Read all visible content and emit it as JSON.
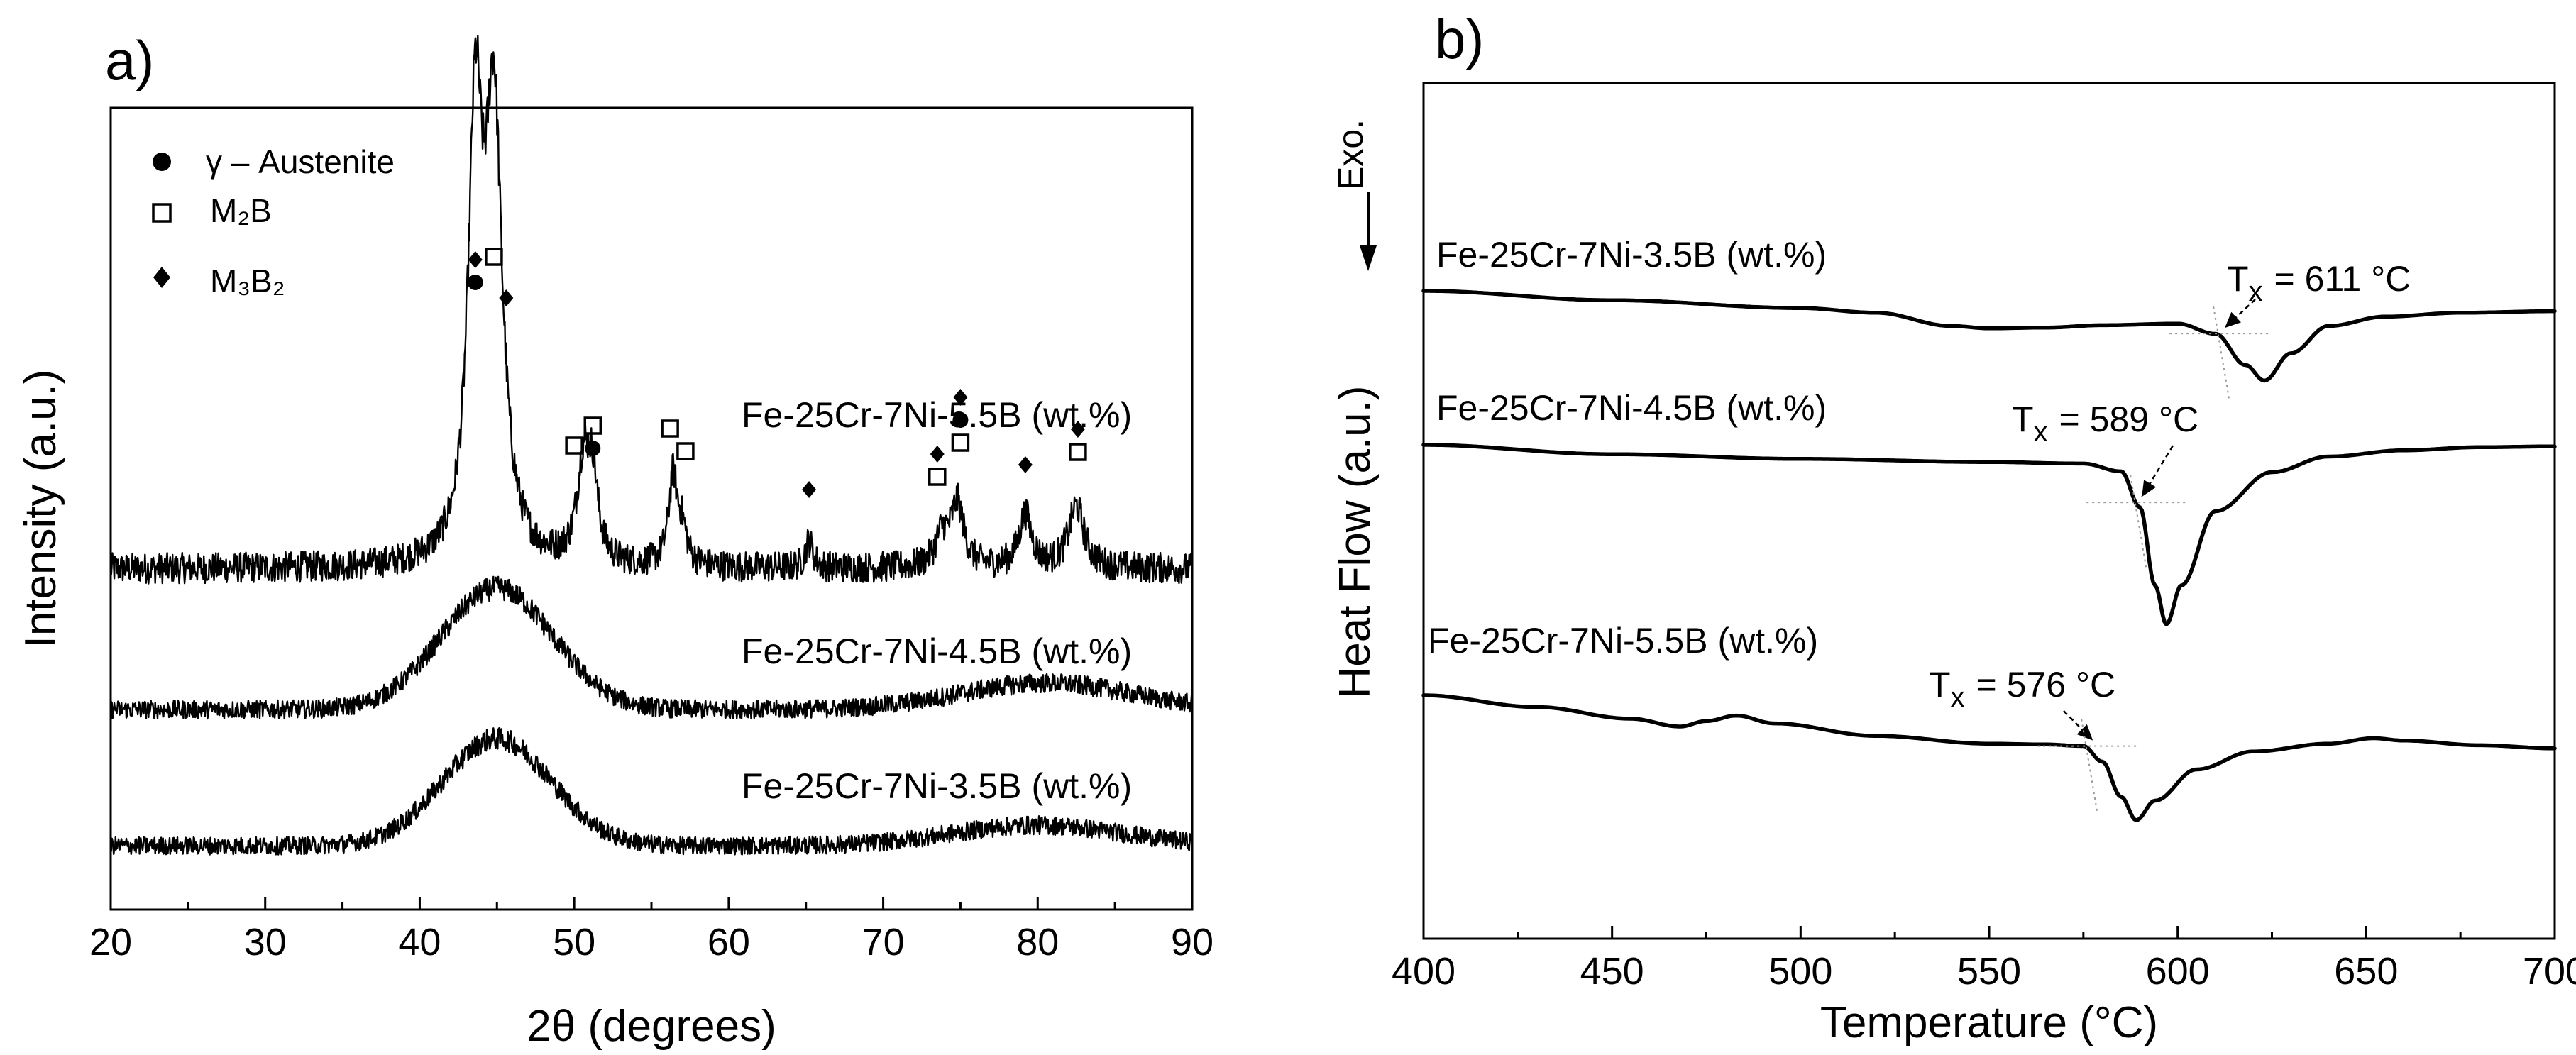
{
  "chart_data": [
    {
      "type": "line",
      "panel_label": "a)",
      "xlabel": "2θ (degrees)",
      "ylabel": "Intensity (a.u.)",
      "xlim": [
        20,
        90
      ],
      "xticks": [
        20,
        30,
        40,
        50,
        60,
        70,
        80,
        90
      ],
      "legend": [
        {
          "marker": "circle",
          "label": "γ – Austenite"
        },
        {
          "marker": "square",
          "label": "M₂B"
        },
        {
          "marker": "diamond",
          "label": "M₃B₂"
        }
      ],
      "series": [
        {
          "name": "Fe-25Cr-7Ni-5.5B (wt.%)",
          "baseline": 0.0,
          "peaks": [
            {
              "x": 43.6,
              "height": 0.95,
              "width": 0.55
            },
            {
              "x": 44.8,
              "height": 1.0,
              "width": 0.65
            },
            {
              "x": 50.6,
              "height": 0.22,
              "width": 0.5
            },
            {
              "x": 51.2,
              "height": 0.17,
              "width": 0.4
            },
            {
              "x": 56.4,
              "height": 0.2,
              "width": 0.35
            },
            {
              "x": 57.0,
              "height": 0.07,
              "width": 0.35
            },
            {
              "x": 65.2,
              "height": 0.06,
              "width": 0.3
            },
            {
              "x": 73.8,
              "height": 0.07,
              "width": 0.5
            },
            {
              "x": 74.8,
              "height": 0.14,
              "width": 0.5
            },
            {
              "x": 79.2,
              "height": 0.12,
              "width": 0.5
            },
            {
              "x": 82.5,
              "height": 0.14,
              "width": 0.6
            }
          ],
          "noise": 0.035
        },
        {
          "name": "Fe-25Cr-7Ni-4.5B (wt.%)",
          "baseline": 0.0,
          "halos": [
            {
              "x": 45.0,
              "height": 0.46,
              "width": 3.6
            },
            {
              "x": 80.5,
              "height": 0.1,
              "width": 5.5
            }
          ],
          "noise": 0.035
        },
        {
          "name": "Fe-25Cr-7Ni-3.5B (wt.%)",
          "baseline": 0.0,
          "halos": [
            {
              "x": 45.0,
              "height": 0.42,
              "width": 3.5
            },
            {
              "x": 80.0,
              "height": 0.08,
              "width": 5.5
            }
          ],
          "noise": 0.035
        }
      ],
      "phase_markers": [
        {
          "x": 43.6,
          "symbols": [
            "diamond",
            "circle"
          ]
        },
        {
          "x": 44.8,
          "symbols": [
            "square"
          ]
        },
        {
          "x": 45.6,
          "symbols": [
            "diamond"
          ]
        },
        {
          "x": 50.0,
          "symbols": [
            "square"
          ]
        },
        {
          "x": 51.2,
          "symbols": [
            "square",
            "circle"
          ]
        },
        {
          "x": 56.2,
          "symbols": [
            "square"
          ]
        },
        {
          "x": 57.2,
          "symbols": [
            "square"
          ]
        },
        {
          "x": 65.2,
          "symbols": [
            "diamond"
          ]
        },
        {
          "x": 73.5,
          "symbols": [
            "diamond",
            "square"
          ]
        },
        {
          "x": 75.0,
          "symbols": [
            "diamond",
            "circle",
            "square"
          ]
        },
        {
          "x": 79.2,
          "symbols": [
            "diamond"
          ]
        },
        {
          "x": 82.6,
          "symbols": [
            "diamond",
            "square"
          ]
        }
      ]
    },
    {
      "type": "line",
      "panel_label": "b)",
      "xlabel": "Temperature (°C)",
      "ylabel": "Heat Flow (a.u.)",
      "direction_label": "Exo.",
      "xlim": [
        400,
        700
      ],
      "xticks": [
        400,
        450,
        500,
        550,
        600,
        650,
        700
      ],
      "series": [
        {
          "name": "Fe-25Cr-7Ni-3.5B (wt.%)",
          "points": [
            [
              400,
              0.0
            ],
            [
              450,
              -0.12
            ],
            [
              500,
              -0.22
            ],
            [
              520,
              -0.28
            ],
            [
              540,
              -0.45
            ],
            [
              550,
              -0.48
            ],
            [
              565,
              -0.47
            ],
            [
              580,
              -0.44
            ],
            [
              600,
              -0.42
            ],
            [
              610,
              -0.55
            ],
            [
              618,
              -0.95
            ],
            [
              623,
              -1.15
            ],
            [
              630,
              -0.8
            ],
            [
              640,
              -0.45
            ],
            [
              655,
              -0.33
            ],
            [
              675,
              -0.28
            ],
            [
              700,
              -0.26
            ]
          ],
          "onset": {
            "label": "T",
            "subscript": "x",
            "value": "= 611 °C",
            "temperature": 611
          }
        },
        {
          "name": "Fe-25Cr-7Ni-4.5B (wt.%)",
          "points": [
            [
              400,
              0.0
            ],
            [
              450,
              -0.12
            ],
            [
              500,
              -0.18
            ],
            [
              550,
              -0.22
            ],
            [
              575,
              -0.24
            ],
            [
              585,
              -0.34
            ],
            [
              590,
              -0.8
            ],
            [
              594,
              -1.8
            ],
            [
              597,
              -2.3
            ],
            [
              601,
              -1.8
            ],
            [
              610,
              -0.85
            ],
            [
              625,
              -0.35
            ],
            [
              640,
              -0.15
            ],
            [
              660,
              -0.07
            ],
            [
              680,
              -0.03
            ],
            [
              700,
              -0.02
            ]
          ],
          "onset": {
            "label": "T",
            "subscript": "x",
            "value": "= 589 °C",
            "temperature": 589
          }
        },
        {
          "name": "Fe-25Cr-7Ni-5.5B (wt.%)",
          "points": [
            [
              400,
              0.0
            ],
            [
              430,
              -0.15
            ],
            [
              455,
              -0.3
            ],
            [
              468,
              -0.4
            ],
            [
              475,
              -0.33
            ],
            [
              483,
              -0.26
            ],
            [
              493,
              -0.36
            ],
            [
              520,
              -0.52
            ],
            [
              550,
              -0.62
            ],
            [
              565,
              -0.63
            ],
            [
              575,
              -0.65
            ],
            [
              580,
              -0.85
            ],
            [
              585,
              -1.3
            ],
            [
              589,
              -1.6
            ],
            [
              594,
              -1.35
            ],
            [
              605,
              -0.95
            ],
            [
              620,
              -0.72
            ],
            [
              640,
              -0.62
            ],
            [
              652,
              -0.55
            ],
            [
              660,
              -0.58
            ],
            [
              680,
              -0.64
            ],
            [
              700,
              -0.68
            ]
          ],
          "onset": {
            "label": "T",
            "subscript": "x",
            "value": "= 576 °C",
            "temperature": 576
          }
        }
      ]
    }
  ]
}
